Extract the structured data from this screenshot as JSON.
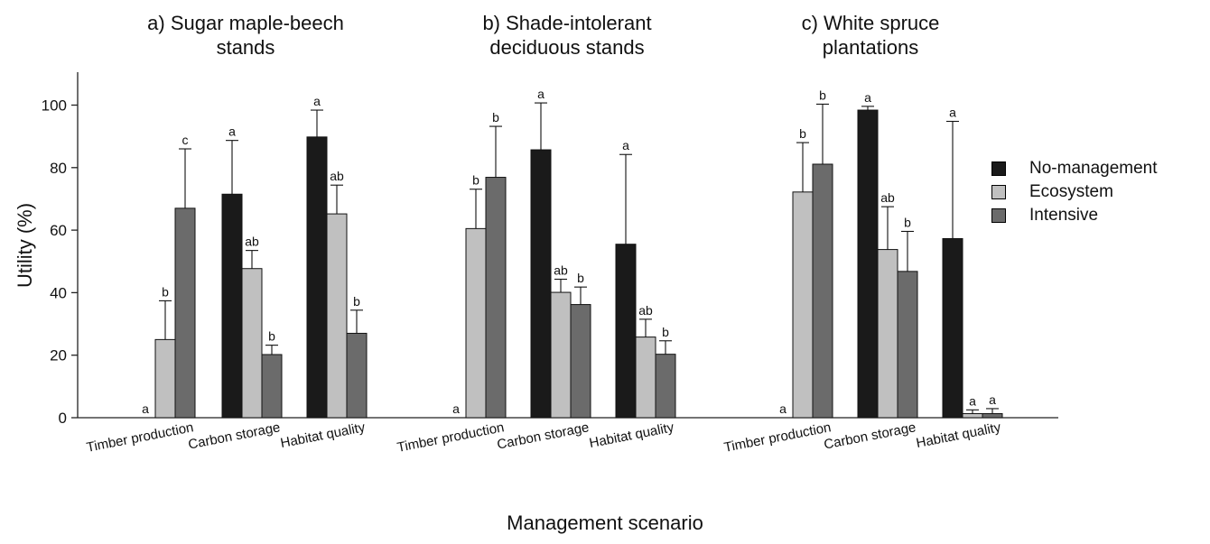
{
  "chart_data": {
    "type": "bar",
    "xlabel": "Management scenario",
    "ylabel": "Utility (%)",
    "ylim": [
      0,
      110
    ],
    "yticks": [
      0,
      20,
      40,
      60,
      80,
      100
    ],
    "categories": [
      "Timber production",
      "Carbon storage",
      "Habitat quality"
    ],
    "legend": {
      "placement": "right",
      "entries": [
        "No-management",
        "Ecosystem",
        "Intensive"
      ]
    },
    "series_colors": [
      "#1a1a1a",
      "#c0c0c0",
      "#6b6b6b"
    ],
    "panels": [
      {
        "title_line1": "a) Sugar maple-beech",
        "title_line2": "stands",
        "series": [
          {
            "name": "No-management",
            "values": [
              0,
              71.5,
              89.8
            ],
            "errors": [
              0,
              17.2,
              8.6
            ],
            "letters": [
              "a",
              "a",
              "a"
            ]
          },
          {
            "name": "Ecosystem",
            "values": [
              25,
              47.7,
              65.2
            ],
            "errors": [
              12.4,
              5.8,
              9.2
            ],
            "letters": [
              "b",
              "ab",
              "ab"
            ]
          },
          {
            "name": "Intensive",
            "values": [
              67,
              20.2,
              27
            ],
            "errors": [
              19,
              3,
              7.4
            ],
            "letters": [
              "c",
              "b",
              "b"
            ]
          }
        ]
      },
      {
        "title_line1": "b) Shade-intolerant",
        "title_line2": "deciduous stands",
        "series": [
          {
            "name": "No-management",
            "values": [
              0,
              85.7,
              55.5
            ],
            "errors": [
              0,
              15,
              28.7
            ],
            "letters": [
              "a",
              "a",
              "a"
            ]
          },
          {
            "name": "Ecosystem",
            "values": [
              60.5,
              40.1,
              25.8
            ],
            "errors": [
              12.6,
              4.2,
              5.7
            ],
            "letters": [
              "b",
              "ab",
              "ab"
            ]
          },
          {
            "name": "Intensive",
            "values": [
              76.9,
              36.2,
              20.3
            ],
            "errors": [
              16.3,
              5.6,
              4.3
            ],
            "letters": [
              "b",
              "b",
              "b"
            ]
          }
        ]
      },
      {
        "title_line1": "c) White spruce",
        "title_line2": "plantations",
        "series": [
          {
            "name": "No-management",
            "values": [
              0,
              98.4,
              57.3
            ],
            "errors": [
              0,
              1.2,
              37.5
            ],
            "letters": [
              "a",
              "a",
              "a"
            ]
          },
          {
            "name": "Ecosystem",
            "values": [
              72.2,
              53.8,
              1.3
            ],
            "errors": [
              15.8,
              13.7,
              1.2
            ],
            "letters": [
              "b",
              "ab",
              "a"
            ]
          },
          {
            "name": "Intensive",
            "values": [
              81.1,
              46.8,
              1.3
            ],
            "errors": [
              19.2,
              12.8,
              1.6
            ],
            "letters": [
              "b",
              "b",
              "a"
            ]
          }
        ]
      }
    ]
  }
}
